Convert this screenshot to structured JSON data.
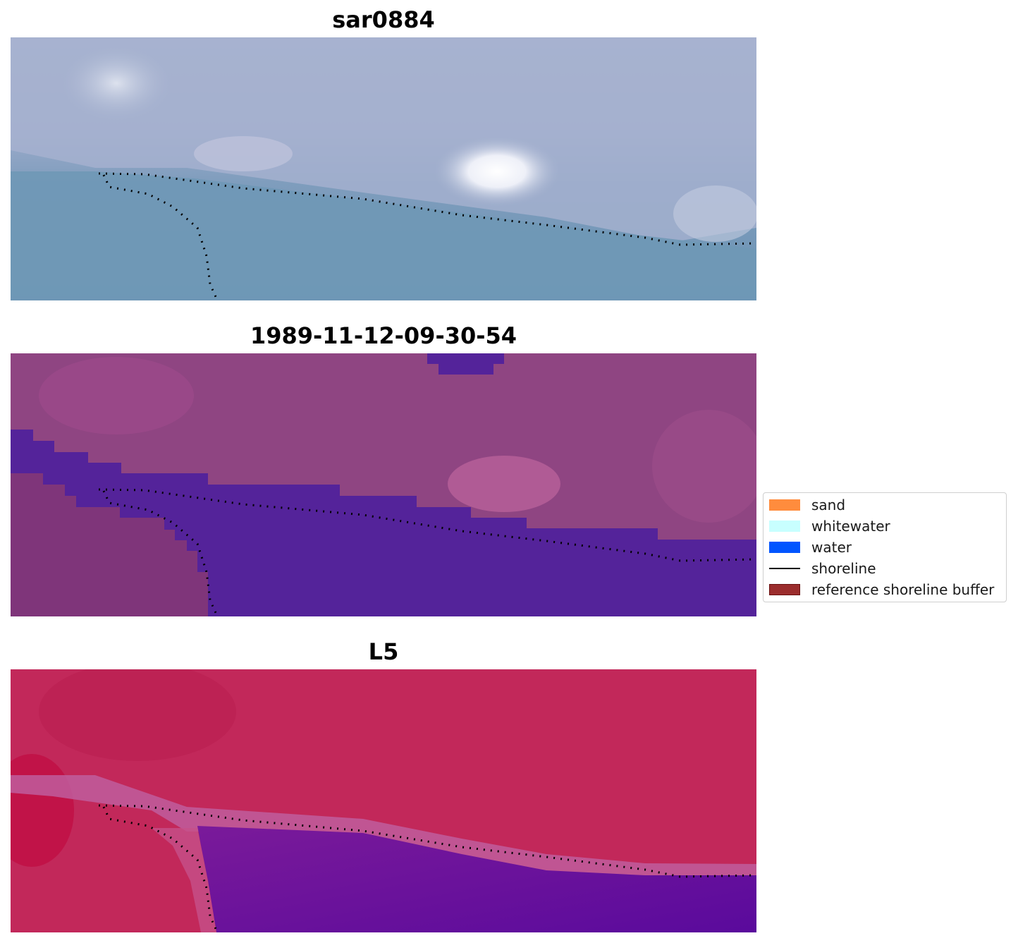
{
  "panels": [
    {
      "title": "sar0884",
      "style": "rgb"
    },
    {
      "title": "1989-11-12-09-30-54",
      "style": "classified"
    },
    {
      "title": "L5",
      "style": "index"
    }
  ],
  "legend": {
    "items": [
      {
        "label": "sand",
        "color": "#ff8c3d",
        "type": "patch"
      },
      {
        "label": "whitewater",
        "color": "#c8ffff",
        "type": "patch"
      },
      {
        "label": "water",
        "color": "#0055ff",
        "type": "patch"
      },
      {
        "label": "shoreline",
        "color": "#000000",
        "type": "line"
      },
      {
        "label": "reference shoreline buffer",
        "color": "#9b2d2d",
        "type": "patch"
      }
    ]
  }
}
